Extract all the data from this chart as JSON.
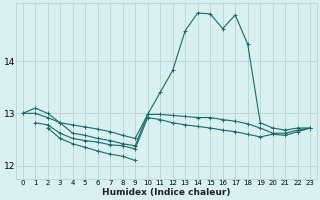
{
  "xlabel": "Humidex (Indice chaleur)",
  "bg_color": "#d8f0f0",
  "grid_color": "#b0d0d0",
  "line_color": "#1a6868",
  "xlim": [
    -0.5,
    23.5
  ],
  "ylim": [
    11.75,
    15.1
  ],
  "yticks": [
    12,
    13,
    14
  ],
  "xticks": [
    0,
    1,
    2,
    3,
    4,
    5,
    6,
    7,
    8,
    9,
    10,
    11,
    12,
    13,
    14,
    15,
    16,
    17,
    18,
    19,
    20,
    21,
    22,
    23
  ],
  "series": [
    {
      "x": [
        0,
        1,
        2,
        3,
        4,
        5,
        6,
        7,
        8,
        9,
        10,
        11,
        12,
        13,
        14,
        15,
        16,
        17,
        18,
        19,
        20,
        21,
        22,
        23
      ],
      "y": [
        13.0,
        13.1,
        13.0,
        12.82,
        12.62,
        12.58,
        12.52,
        12.48,
        12.42,
        12.38,
        12.98,
        13.4,
        13.82,
        14.58,
        14.92,
        14.9,
        14.62,
        14.88,
        14.32,
        12.82,
        12.72,
        12.68,
        12.72,
        12.72
      ]
    },
    {
      "x": [
        0,
        1,
        2,
        3,
        4,
        5,
        6,
        7,
        8,
        9,
        10,
        11,
        12,
        13,
        14,
        15,
        16,
        17,
        18,
        19,
        20,
        21,
        22,
        23
      ],
      "y": [
        13.0,
        13.0,
        12.92,
        12.82,
        12.78,
        12.74,
        12.7,
        12.65,
        12.58,
        12.52,
        12.98,
        12.98,
        12.96,
        12.94,
        12.92,
        12.92,
        12.88,
        12.85,
        12.8,
        12.72,
        12.62,
        12.62,
        12.68,
        12.72
      ]
    },
    {
      "x": [
        1,
        2,
        3,
        4,
        5,
        6,
        7,
        8,
        9,
        10,
        11,
        12,
        13,
        14,
        15,
        16,
        17,
        18,
        19,
        20,
        21,
        22,
        23
      ],
      "y": [
        12.82,
        12.78,
        12.62,
        12.52,
        12.48,
        12.45,
        12.4,
        12.38,
        12.32,
        12.92,
        12.88,
        12.82,
        12.78,
        12.75,
        12.72,
        12.68,
        12.65,
        12.6,
        12.55,
        12.6,
        12.58,
        12.65,
        12.72
      ]
    },
    {
      "x": [
        2,
        3,
        4,
        5,
        6,
        7,
        8,
        9
      ],
      "y": [
        12.72,
        12.52,
        12.42,
        12.35,
        12.28,
        12.22,
        12.18,
        12.1
      ]
    }
  ]
}
